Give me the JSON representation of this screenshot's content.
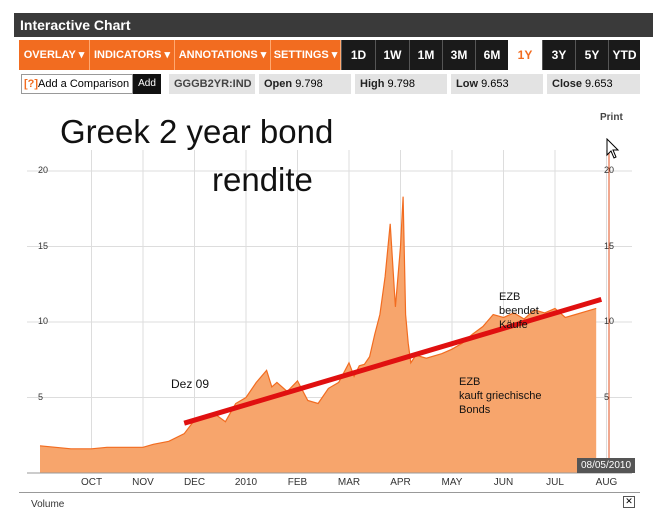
{
  "window": {
    "title": "Interactive Chart"
  },
  "toolbar": {
    "menus": [
      {
        "label": "OVERLAY ▾"
      },
      {
        "label": "INDICATORS ▾"
      },
      {
        "label": "ANNOTATIONS ▾"
      },
      {
        "label": "SETTINGS ▾"
      }
    ],
    "ranges": [
      {
        "label": "1D",
        "active": false
      },
      {
        "label": "1W",
        "active": false
      },
      {
        "label": "1M",
        "active": false
      },
      {
        "label": "3M",
        "active": false
      },
      {
        "label": "6M",
        "active": false
      },
      {
        "label": "1Y",
        "active": true
      },
      {
        "label": "3Y",
        "active": false
      },
      {
        "label": "5Y",
        "active": false
      },
      {
        "label": "YTD",
        "active": false
      }
    ]
  },
  "infobar": {
    "compare_icon": "[?]",
    "compare_label": "Add a Comparison",
    "add_label": "Add",
    "ticker": "GGGB2YR:IND",
    "open_label": "Open",
    "open_value": "9.798",
    "high_label": "High",
    "high_value": "9.798",
    "low_label": "Low",
    "low_value": "9.653",
    "close_label": "Close",
    "close_value": "9.653"
  },
  "chart": {
    "print_label": "Print",
    "headline_line1": "Greek 2 year bond",
    "headline_line2": "rendite",
    "annotation_dez": "Dez 09",
    "annotation_ezb_end_1": "EZB",
    "annotation_ezb_end_2": "beendet",
    "annotation_ezb_end_3": "Käufe",
    "annotation_ezb_buy_1": "EZB",
    "annotation_ezb_buy_2": "kauft griechische",
    "annotation_ezb_buy_3": "Bonds",
    "date_box": "08/05/2010",
    "fill_color": "#f7a56c",
    "line_color": "#f26c20",
    "trend_color": "#e01010",
    "grid_color": "#dddddd"
  },
  "chart_data": {
    "type": "area",
    "title": "Greek 2 year bond rendite",
    "x_ticks": [
      "OCT",
      "NOV",
      "DEC",
      "2010",
      "FEB",
      "MAR",
      "APR",
      "MAY",
      "JUN",
      "JUL",
      "AUG"
    ],
    "y_ticks": [
      5,
      10,
      15,
      20
    ],
    "ylim": [
      0,
      23
    ],
    "series": [
      {
        "x": [
          0,
          0.3,
          0.6,
          1.0,
          1.3,
          1.6,
          2.0,
          2.2,
          2.5,
          2.8,
          3.0,
          3.2,
          3.4,
          3.6,
          3.8,
          4.0,
          4.2,
          4.4,
          4.5,
          4.6,
          4.8,
          5.0,
          5.2,
          5.4,
          5.6,
          5.8,
          6.0,
          6.1,
          6.2,
          6.3,
          6.4,
          6.5,
          6.6,
          6.7,
          6.8,
          6.9,
          7.0,
          7.05,
          7.1,
          7.15,
          7.2,
          7.3,
          7.5,
          7.8,
          8.0,
          8.2,
          8.4,
          8.6,
          8.8,
          9.0,
          9.2,
          9.4,
          9.6,
          9.8,
          10.0,
          10.2,
          10.4,
          10.6,
          10.8
        ],
        "y": [
          1.8,
          1.7,
          1.6,
          1.6,
          1.7,
          1.7,
          1.7,
          1.9,
          2.1,
          2.6,
          3.5,
          3.7,
          3.9,
          3.4,
          4.6,
          5.0,
          6.0,
          6.8,
          5.7,
          6.0,
          5.4,
          6.1,
          4.8,
          4.6,
          5.6,
          6.0,
          7.3,
          6.4,
          7.1,
          7.2,
          7.7,
          9.2,
          10.5,
          13.0,
          16.5,
          11.0,
          15.0,
          18.3,
          10.5,
          8.6,
          7.3,
          7.8,
          7.6,
          7.9,
          8.2,
          8.6,
          9.2,
          9.7,
          10.5,
          10.3,
          10.6,
          10.2,
          10.8,
          10.6,
          10.9,
          10.3,
          10.5,
          10.7,
          10.9
        ]
      }
    ],
    "trendline": {
      "x": [
        2.8,
        10.9
      ],
      "y": [
        3.3,
        11.5
      ]
    },
    "grid": true,
    "right_axis": true
  },
  "volume": {
    "label": "Volume",
    "close_label": "✕"
  }
}
